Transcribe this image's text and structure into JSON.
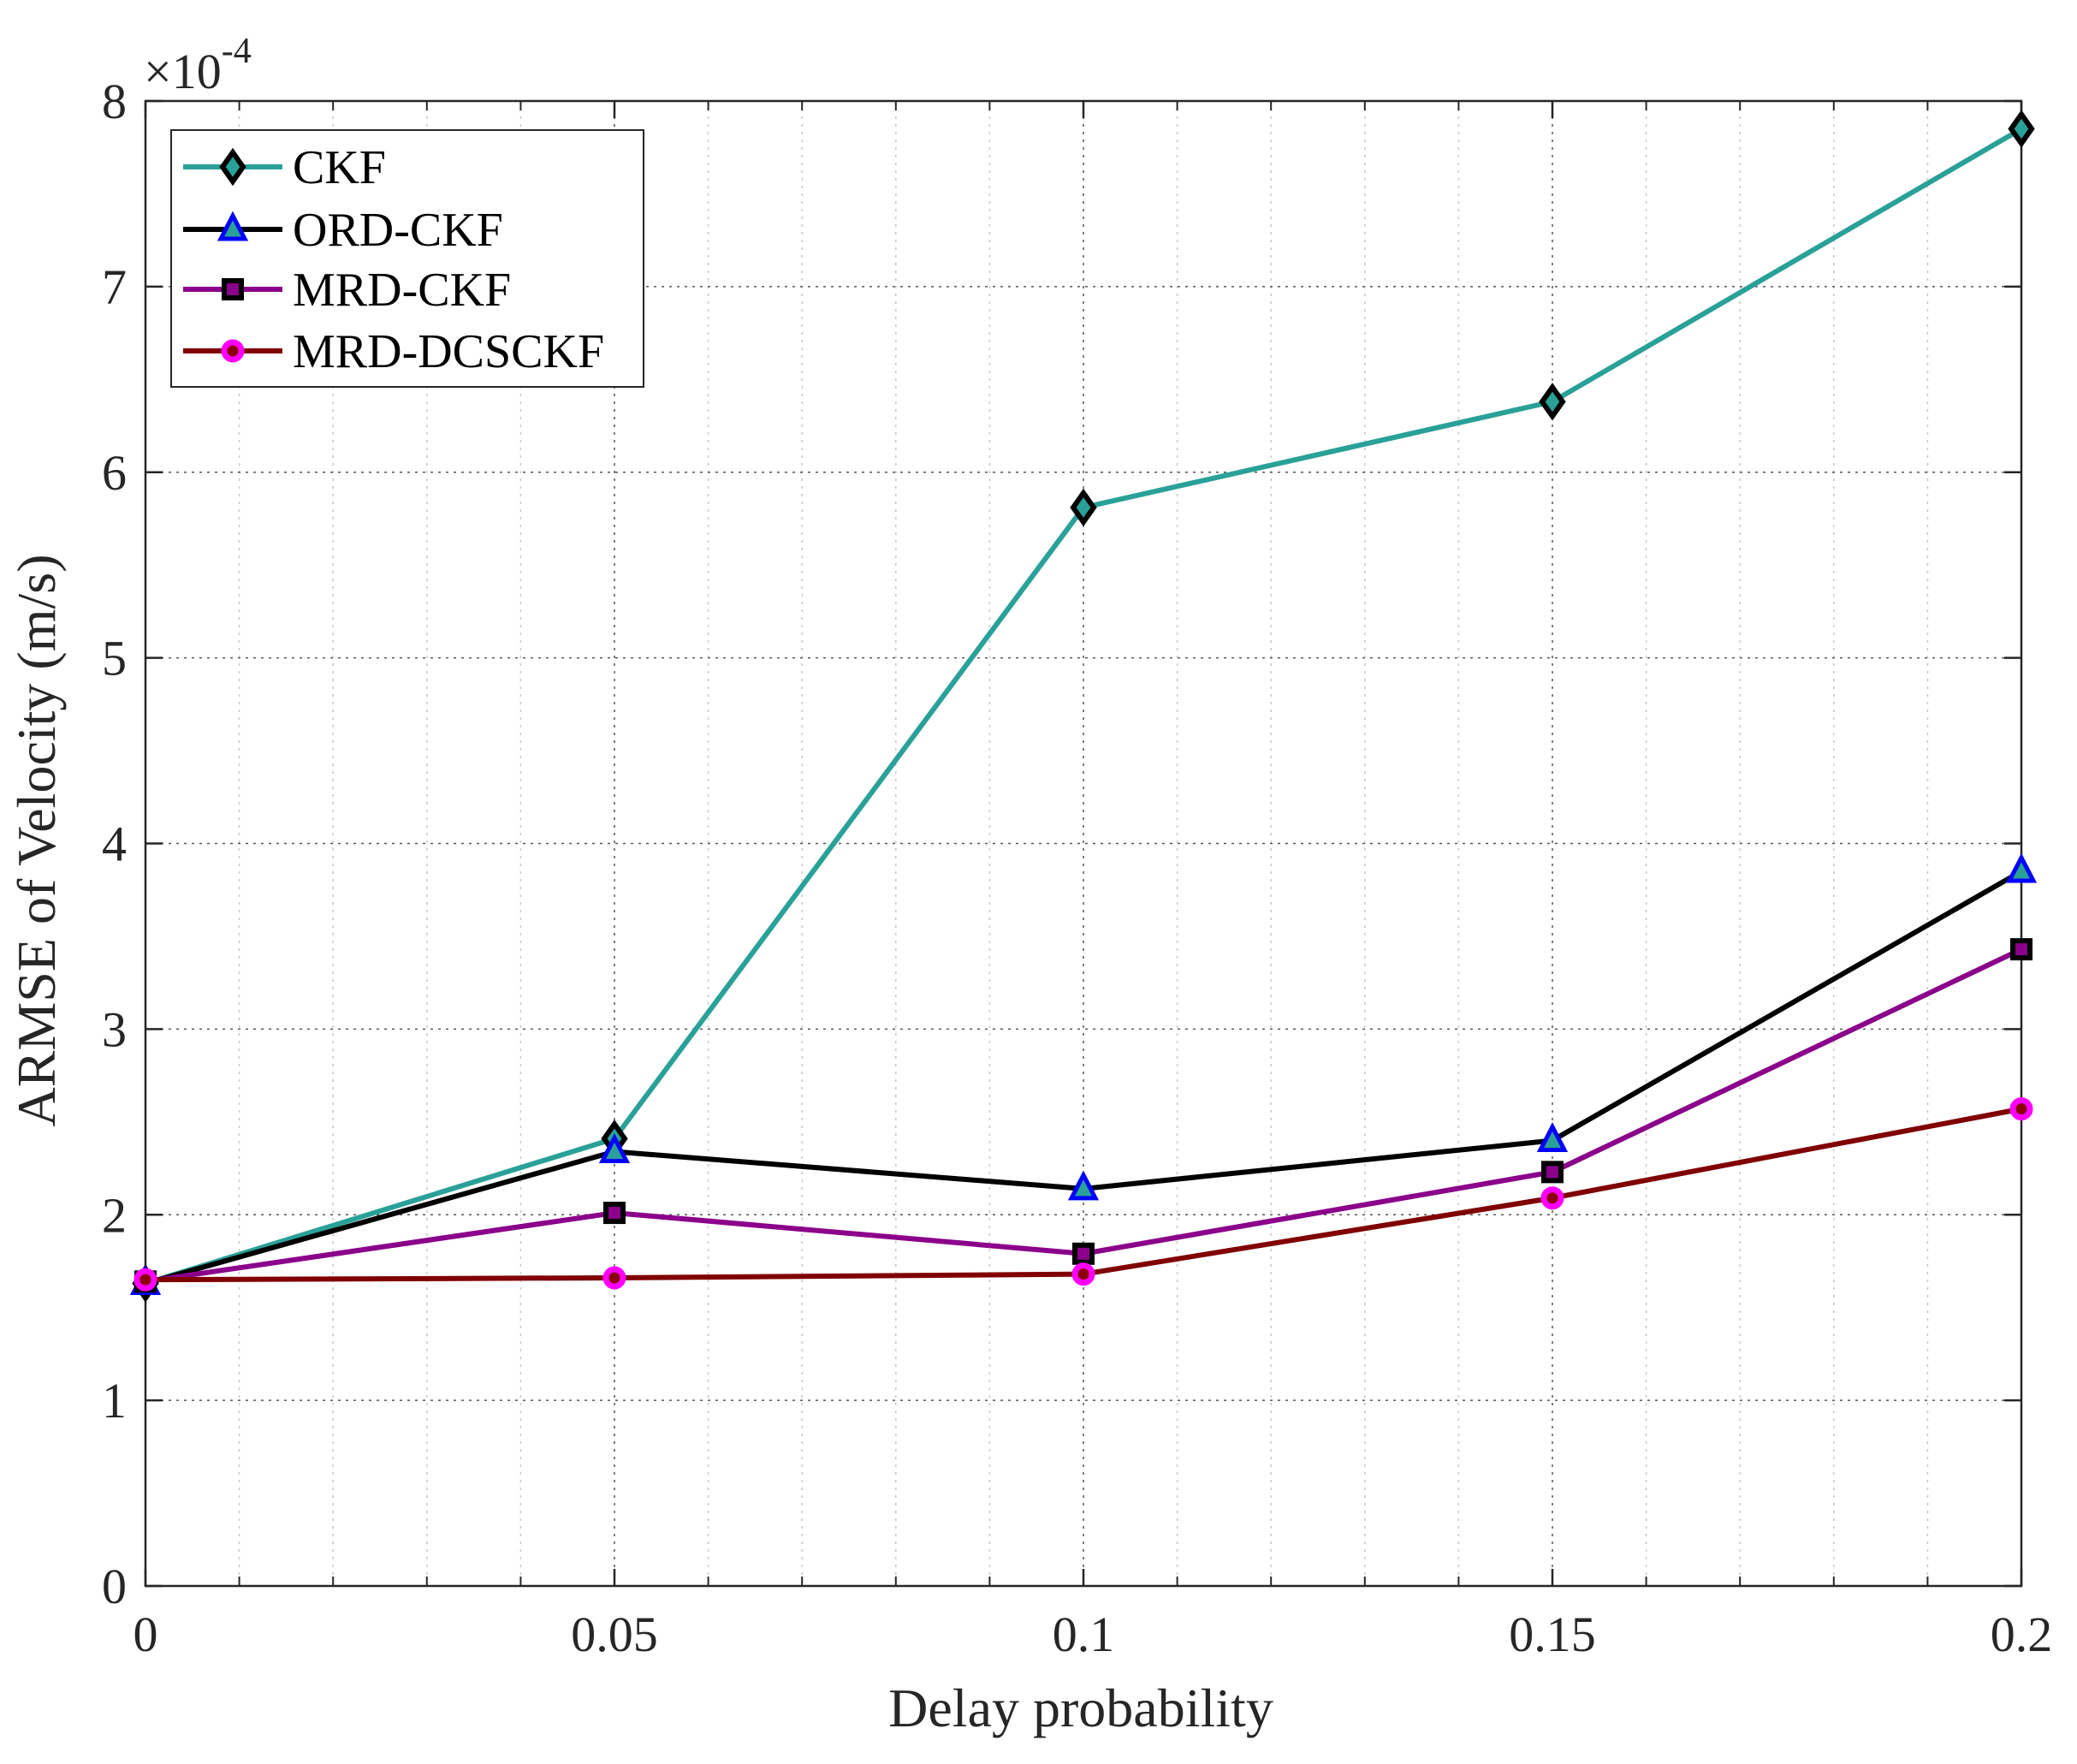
{
  "chart_data": {
    "type": "line",
    "title": "",
    "xlabel": "Delay probability",
    "ylabel": "ARMSE of Velocity (m/s)",
    "y_exponent_base": "×10",
    "y_exponent_power": "-4",
    "xlim": [
      0,
      0.2
    ],
    "ylim": [
      0,
      8
    ],
    "x_ticks": [
      0,
      0.05,
      0.1,
      0.15,
      0.2
    ],
    "x_tick_labels": [
      "0",
      "0.05",
      "0.1",
      "0.15",
      "0.2"
    ],
    "x_minor_ticks": [
      0.01,
      0.02,
      0.03,
      0.04,
      0.06,
      0.07,
      0.08,
      0.09,
      0.11,
      0.12,
      0.13,
      0.14,
      0.16,
      0.17,
      0.18,
      0.19
    ],
    "y_ticks": [
      0,
      1,
      2,
      3,
      4,
      5,
      6,
      7,
      8
    ],
    "y_tick_labels": [
      "0",
      "1",
      "2",
      "3",
      "4",
      "5",
      "6",
      "7",
      "8"
    ],
    "grid": true,
    "legend_position": "top-left",
    "x": [
      0,
      0.05,
      0.1,
      0.15,
      0.2
    ],
    "series": [
      {
        "name": "CKF",
        "values": [
          1.63,
          2.41,
          5.81,
          6.38,
          7.85
        ],
        "line_color": "#2aa198",
        "marker": "diamond",
        "marker_face": "#2aa198",
        "marker_edge": "#000000"
      },
      {
        "name": "ORD-CKF",
        "values": [
          1.63,
          2.34,
          2.14,
          2.4,
          3.85
        ],
        "line_color": "#000000",
        "marker": "triangle",
        "marker_face": "#2aa198",
        "marker_edge": "#0000ff"
      },
      {
        "name": "MRD-CKF",
        "values": [
          1.64,
          2.01,
          1.79,
          2.23,
          3.43
        ],
        "line_color": "#8b008b",
        "marker": "square",
        "marker_face": "#8b008b",
        "marker_edge": "#000000"
      },
      {
        "name": "MRD-DCSCKF",
        "values": [
          1.65,
          1.66,
          1.68,
          2.09,
          2.57
        ],
        "line_color": "#800000",
        "marker": "circle",
        "marker_face": "#8b0000",
        "marker_edge": "#ff00ff"
      }
    ]
  }
}
